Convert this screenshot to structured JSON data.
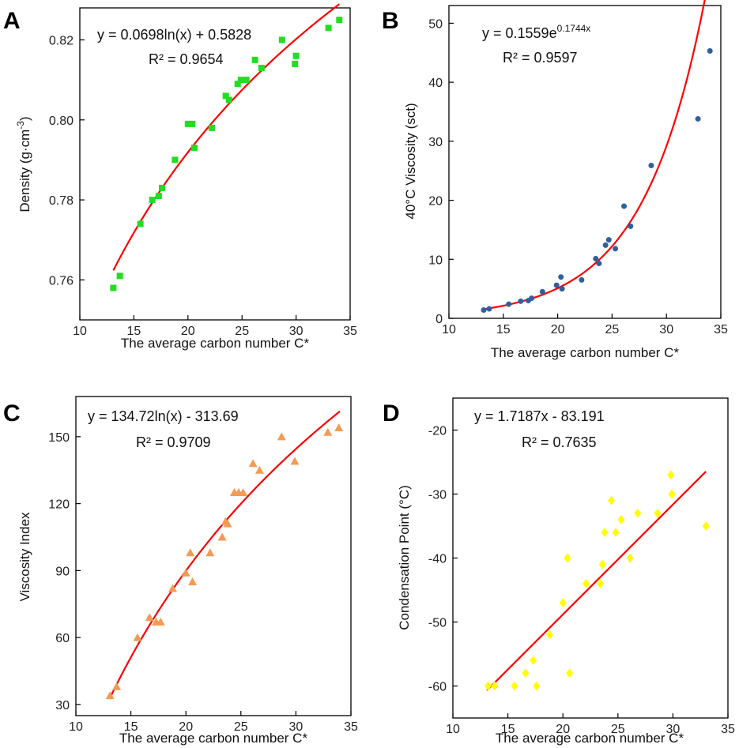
{
  "chart_data": [
    {
      "id": "A",
      "type": "scatter",
      "panel_label": "A",
      "xlabel": "The average carbon number C*",
      "ylabel": "Density (g·cm-3)",
      "ylabel_parts": {
        "main": "Density (g·cm",
        "sup": "-3",
        "end": ")"
      },
      "xlim": [
        10,
        35
      ],
      "ylim": [
        0.75,
        0.828
      ],
      "xticks": [
        10,
        15,
        20,
        25,
        30,
        35
      ],
      "yticks": [
        0.76,
        0.78,
        0.8,
        0.82
      ],
      "ytick_labels": [
        "0.76",
        "0.78",
        "0.80",
        "0.82"
      ],
      "marker": "square",
      "color": "#22dd22",
      "equation": "y = 0.0698ln(x) + 0.5828",
      "r2": "R² = 0.9654",
      "fit": {
        "kind": "log",
        "a": 0.0698,
        "b": 0.5828,
        "x_range": [
          13.1,
          34
        ],
        "color": "#ff0000"
      },
      "points": [
        [
          13.1,
          0.758
        ],
        [
          13.7,
          0.761
        ],
        [
          15.6,
          0.774
        ],
        [
          16.7,
          0.78
        ],
        [
          17.3,
          0.781
        ],
        [
          17.6,
          0.783
        ],
        [
          18.8,
          0.79
        ],
        [
          20.0,
          0.799
        ],
        [
          20.4,
          0.799
        ],
        [
          20.6,
          0.793
        ],
        [
          22.2,
          0.798
        ],
        [
          23.5,
          0.806
        ],
        [
          23.8,
          0.805
        ],
        [
          24.6,
          0.809
        ],
        [
          24.9,
          0.81
        ],
        [
          25.4,
          0.81
        ],
        [
          26.2,
          0.815
        ],
        [
          26.8,
          0.813
        ],
        [
          28.7,
          0.82
        ],
        [
          29.9,
          0.814
        ],
        [
          30.0,
          0.816
        ],
        [
          33.0,
          0.823
        ],
        [
          34.0,
          0.825
        ]
      ]
    },
    {
      "id": "B",
      "type": "scatter",
      "panel_label": "B",
      "xlabel": "The average carbon number C*",
      "ylabel": "40°C Viscosity (sct)",
      "xlim": [
        10,
        35
      ],
      "ylim": [
        0,
        53
      ],
      "xticks": [
        10,
        15,
        20,
        25,
        30,
        35
      ],
      "yticks": [
        0,
        10,
        20,
        30,
        40,
        50
      ],
      "ytick_labels": [
        "0",
        "10",
        "20",
        "30",
        "40",
        "50"
      ],
      "marker": "circle",
      "color": "#2f5f9e",
      "equation_main": "y = 0.1559e",
      "equation_sup": "0.1744x",
      "r2": "R² = 0.9597",
      "fit": {
        "kind": "exp",
        "a": 0.1559,
        "b": 0.1744,
        "x_range": [
          13.1,
          34
        ],
        "color": "#ff0000"
      },
      "points": [
        [
          13.2,
          1.4
        ],
        [
          13.7,
          1.6
        ],
        [
          15.5,
          2.4
        ],
        [
          16.6,
          2.9
        ],
        [
          17.3,
          3.0
        ],
        [
          17.6,
          3.4
        ],
        [
          18.6,
          4.5
        ],
        [
          19.9,
          5.6
        ],
        [
          20.3,
          7.0
        ],
        [
          20.4,
          5.0
        ],
        [
          22.2,
          6.5
        ],
        [
          23.5,
          10.1
        ],
        [
          23.8,
          9.3
        ],
        [
          24.4,
          12.4
        ],
        [
          24.7,
          13.3
        ],
        [
          25.3,
          11.8
        ],
        [
          26.1,
          19.0
        ],
        [
          26.7,
          15.6
        ],
        [
          28.6,
          25.9
        ],
        [
          32.9,
          33.8
        ],
        [
          34.0,
          45.3
        ]
      ]
    },
    {
      "id": "C",
      "type": "scatter",
      "panel_label": "C",
      "xlabel": "The average carbon number C*",
      "ylabel": "Viscosity Index",
      "xlim": [
        10,
        35
      ],
      "ylim": [
        25,
        168
      ],
      "xticks": [
        10,
        15,
        20,
        25,
        30,
        35
      ],
      "yticks": [
        30,
        60,
        90,
        120,
        150
      ],
      "ytick_labels": [
        "30",
        "60",
        "90",
        "120",
        "150"
      ],
      "marker": "triangle",
      "color": "#f59a52",
      "equation": "y = 134.72ln(x) - 313.69",
      "r2": "R² = 0.9709",
      "fit": {
        "kind": "log",
        "a": 134.72,
        "b": -313.69,
        "x_range": [
          13.1,
          34
        ],
        "color": "#ff0000"
      },
      "points": [
        [
          13.1,
          34
        ],
        [
          13.7,
          38
        ],
        [
          15.6,
          60
        ],
        [
          16.7,
          69
        ],
        [
          17.3,
          67
        ],
        [
          17.7,
          67
        ],
        [
          18.8,
          82
        ],
        [
          20.0,
          89
        ],
        [
          20.4,
          98
        ],
        [
          20.6,
          85
        ],
        [
          22.2,
          98
        ],
        [
          23.3,
          105
        ],
        [
          23.6,
          112
        ],
        [
          23.8,
          111
        ],
        [
          24.4,
          125
        ],
        [
          24.8,
          125
        ],
        [
          25.2,
          125
        ],
        [
          26.1,
          138
        ],
        [
          26.7,
          135
        ],
        [
          28.7,
          150
        ],
        [
          29.9,
          139
        ],
        [
          32.9,
          152
        ],
        [
          33.9,
          154
        ]
      ]
    },
    {
      "id": "D",
      "type": "scatter",
      "panel_label": "D",
      "xlabel": "The average carbon number C*",
      "ylabel": "Condensation Point (°C)",
      "xlim": [
        10,
        35
      ],
      "ylim": [
        -65,
        -15
      ],
      "xticks": [
        10,
        15,
        20,
        25,
        30,
        35
      ],
      "yticks": [
        -60,
        -50,
        -40,
        -30,
        -20
      ],
      "ytick_labels": [
        "-60",
        "-50",
        "-40",
        "-30",
        "-20"
      ],
      "marker": "diamond",
      "color": "#ffff00",
      "equation": "y = 1.7187x - 83.191",
      "r2": "R² = 0.7635",
      "fit": {
        "kind": "linear",
        "a": 1.7187,
        "b": -83.191,
        "x_range": [
          13.1,
          33.0
        ],
        "color": "#ff0000"
      },
      "points": [
        [
          13.2,
          -60
        ],
        [
          13.8,
          -60
        ],
        [
          15.6,
          -60
        ],
        [
          16.6,
          -58
        ],
        [
          17.3,
          -56
        ],
        [
          17.6,
          -60
        ],
        [
          18.8,
          -52
        ],
        [
          20.0,
          -47
        ],
        [
          20.4,
          -40
        ],
        [
          20.6,
          -58
        ],
        [
          22.1,
          -44
        ],
        [
          23.4,
          -44
        ],
        [
          23.6,
          -41
        ],
        [
          23.8,
          -36
        ],
        [
          24.4,
          -31
        ],
        [
          24.8,
          -36
        ],
        [
          25.3,
          -34
        ],
        [
          26.1,
          -40
        ],
        [
          26.8,
          -33
        ],
        [
          28.6,
          -33
        ],
        [
          29.8,
          -27
        ],
        [
          29.9,
          -30
        ],
        [
          33.0,
          -35
        ]
      ]
    }
  ]
}
